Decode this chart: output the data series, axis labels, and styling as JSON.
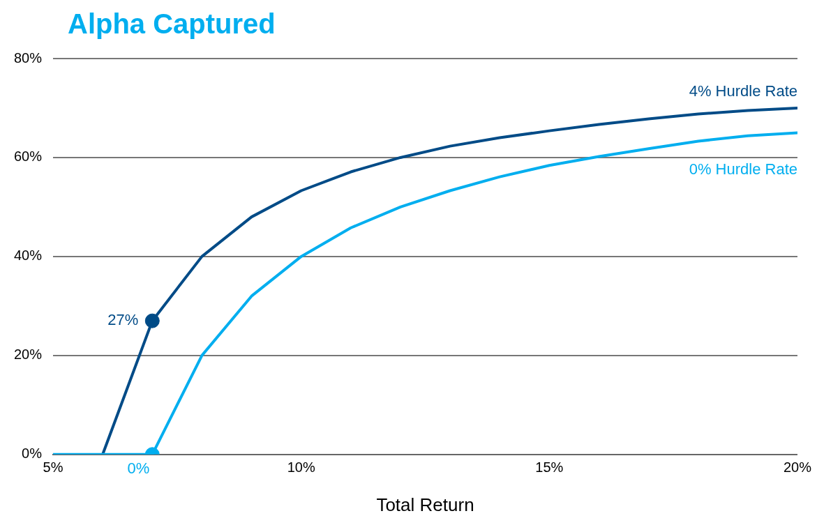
{
  "chart_data": {
    "type": "line",
    "title": "Alpha Captured",
    "xlabel": "Total Return",
    "xlim": [
      5,
      20
    ],
    "xticks": [
      {
        "value": 5,
        "label": "5%"
      },
      {
        "value": 10,
        "label": "10%"
      },
      {
        "value": 15,
        "label": "15%"
      },
      {
        "value": 20,
        "label": "20%"
      }
    ],
    "ylim": [
      0,
      80
    ],
    "yticks": [
      {
        "value": 0,
        "label": "0%"
      },
      {
        "value": 20,
        "label": "20%"
      },
      {
        "value": 40,
        "label": "40%"
      },
      {
        "value": 60,
        "label": "60%"
      },
      {
        "value": 80,
        "label": "80%"
      }
    ],
    "grid": "y",
    "legend": false,
    "marker": "none",
    "series": [
      {
        "name": "4% Hurdle Rate",
        "color": "#004b87",
        "x": [
          6,
          7,
          8,
          9,
          10,
          11,
          12,
          13,
          14,
          15,
          16,
          17,
          18,
          19,
          20
        ],
        "values": [
          0,
          27,
          40,
          48,
          53.3,
          57.1,
          60,
          62.3,
          64,
          65.4,
          66.7,
          67.8,
          68.8,
          69.5,
          70
        ]
      },
      {
        "name": "0% Hurdle Rate",
        "color": "#00aeef",
        "x": [
          5,
          6,
          7,
          8,
          9,
          10,
          11,
          12,
          13,
          14,
          15,
          16,
          17,
          18,
          19,
          20
        ],
        "values": [
          0,
          0,
          0,
          20,
          32,
          40,
          45.8,
          50,
          53.3,
          56.1,
          58.4,
          60.2,
          61.8,
          63.3,
          64.4,
          65
        ]
      },
      {
        "type": "scatter",
        "color": "#004b87",
        "marker": "circle",
        "x": [
          7
        ],
        "values": [
          27
        ]
      },
      {
        "type": "scatter",
        "color": "#00aeef",
        "marker": "circle",
        "x": [
          7
        ],
        "values": [
          0
        ]
      }
    ],
    "annotations": [
      {
        "text": "27%",
        "x": 7,
        "y": 27
      },
      {
        "text": "0%",
        "x": 7,
        "y": 0
      }
    ]
  }
}
